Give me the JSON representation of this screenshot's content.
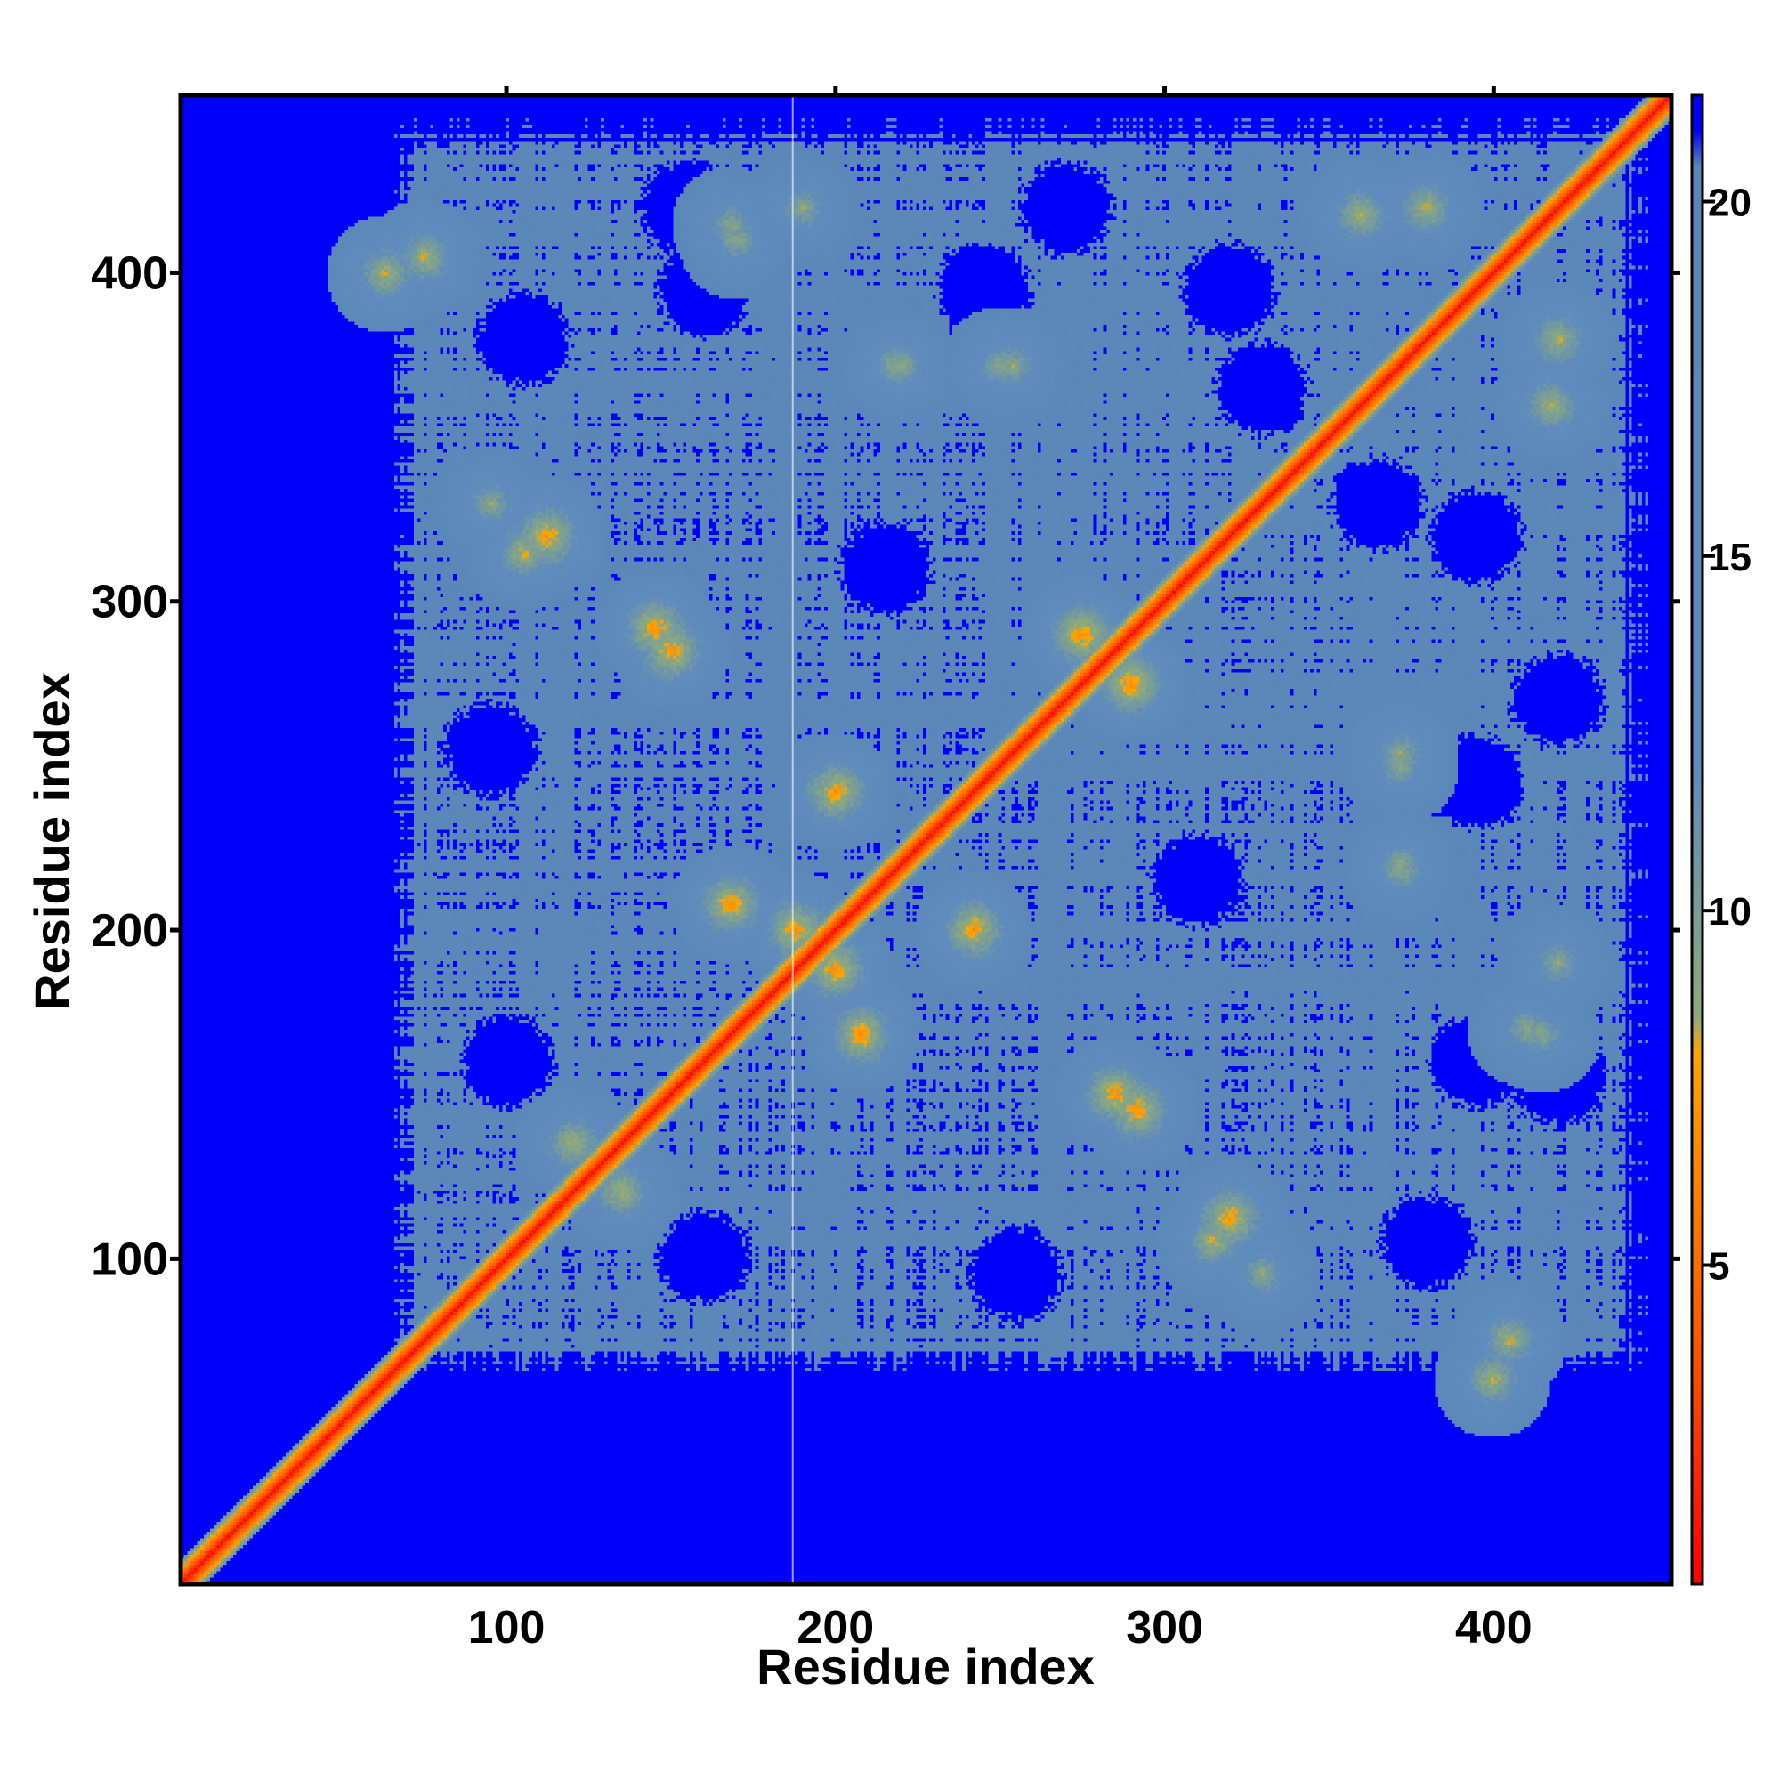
{
  "chart_data": {
    "type": "heatmap",
    "title": "",
    "xlabel": "Residue index",
    "ylabel": "Residue index",
    "xlim": [
      1,
      454
    ],
    "ylim": [
      1,
      454
    ],
    "x_ticks": [
      100,
      200,
      300,
      400
    ],
    "y_ticks": [
      100,
      200,
      300,
      400
    ],
    "x_tick_labels": [
      "100",
      "200",
      "300",
      "400"
    ],
    "y_tick_labels": [
      "100",
      "200",
      "300",
      "400"
    ],
    "grid": false,
    "colorbar": {
      "min": 0.5,
      "max": 21.5,
      "ticks": [
        5,
        10,
        15,
        20
      ],
      "tick_labels": [
        "5",
        "10",
        "15",
        "20"
      ],
      "stops": [
        {
          "value": 0.5,
          "color": "#ff0000"
        },
        {
          "value": 4.0,
          "color": "#ff5a00"
        },
        {
          "value": 8.0,
          "color": "#ffa500"
        },
        {
          "value": 8.5,
          "color": "#8faa7a"
        },
        {
          "value": 12.0,
          "color": "#5f8cbc"
        },
        {
          "value": 20.5,
          "color": "#5a86b8"
        },
        {
          "value": 21.0,
          "color": "#0000ff"
        },
        {
          "value": 21.5,
          "color": "#0000ff"
        }
      ]
    },
    "background_value": 21.5,
    "matrix_symmetric": true,
    "diagonal_width": 3,
    "domain_block": {
      "start": 75,
      "end": 440,
      "value": 19
    },
    "high_contact_regions": [
      {
        "x": 63,
        "y": 400,
        "value": 8
      },
      {
        "x": 112,
        "y": 320,
        "value": 7
      },
      {
        "x": 145,
        "y": 292,
        "value": 7
      },
      {
        "x": 168,
        "y": 208,
        "value": 7
      },
      {
        "x": 188,
        "y": 200,
        "value": 7
      },
      {
        "x": 242,
        "y": 200,
        "value": 7
      },
      {
        "x": 285,
        "y": 150,
        "value": 7
      },
      {
        "x": 315,
        "y": 105,
        "value": 8
      },
      {
        "x": 405,
        "y": 75,
        "value": 8
      },
      {
        "x": 380,
        "y": 420,
        "value": 8
      },
      {
        "x": 418,
        "y": 360,
        "value": 8
      },
      {
        "x": 372,
        "y": 254,
        "value": 9
      },
      {
        "x": 372,
        "y": 218,
        "value": 9
      },
      {
        "x": 220,
        "y": 372,
        "value": 9
      },
      {
        "x": 250,
        "y": 372,
        "value": 9
      },
      {
        "x": 170,
        "y": 410,
        "value": 9
      },
      {
        "x": 275,
        "y": 290,
        "value": 7
      },
      {
        "x": 290,
        "y": 275,
        "value": 7
      },
      {
        "x": 135,
        "y": 120,
        "value": 8
      },
      {
        "x": 95,
        "y": 330,
        "value": 9
      },
      {
        "x": 415,
        "y": 168,
        "value": 9
      },
      {
        "x": 420,
        "y": 190,
        "value": 9
      }
    ],
    "gap_regions": [
      {
        "x": 95,
        "y": 255,
        "value": 21.5
      },
      {
        "x": 330,
        "y": 365,
        "value": 21.5
      },
      {
        "x": 420,
        "y": 270,
        "value": 21.5
      },
      {
        "x": 380,
        "y": 105,
        "value": 21.5
      },
      {
        "x": 310,
        "y": 215,
        "value": 21.5
      },
      {
        "x": 160,
        "y": 395,
        "value": 21.5
      },
      {
        "x": 245,
        "y": 395,
        "value": 21.5
      },
      {
        "x": 160,
        "y": 100,
        "value": 21.5
      },
      {
        "x": 320,
        "y": 395,
        "value": 21.5
      },
      {
        "x": 420,
        "y": 155,
        "value": 21.5
      }
    ],
    "vertical_gridline_at": 187
  }
}
